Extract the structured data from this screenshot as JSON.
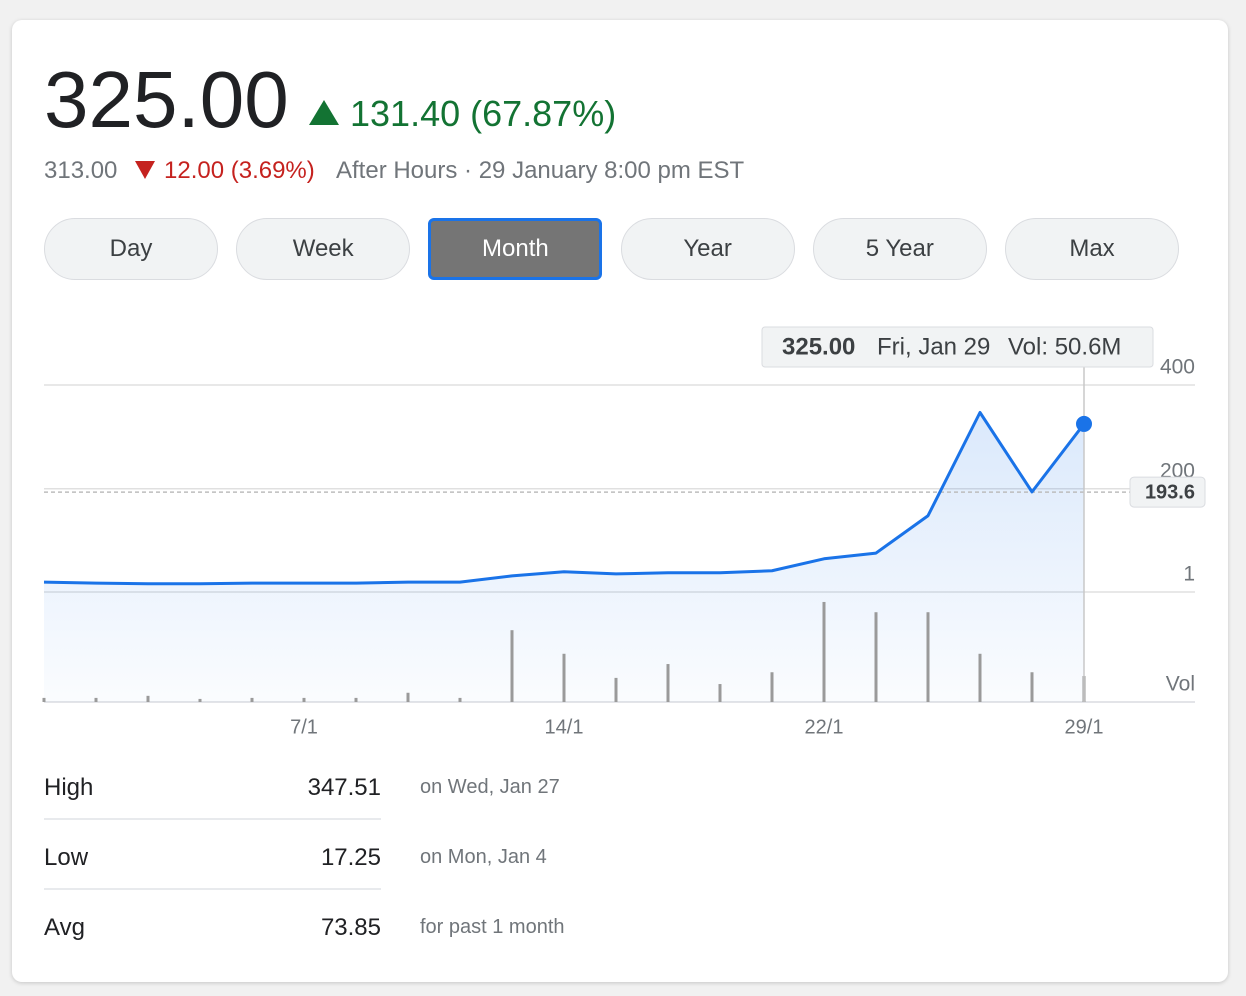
{
  "header": {
    "price": "325.00",
    "change": "131.40 (67.87%)",
    "after_hours_price": "313.00",
    "after_hours_change": "12.00 (3.69%)",
    "after_hours_note": "After Hours · 29 January 8:00 pm EST"
  },
  "range_buttons": {
    "labels": [
      "Day",
      "Week",
      "Month",
      "Year",
      "5 Year",
      "Max"
    ],
    "selected_index": 2
  },
  "chart_data": {
    "type": "line",
    "color": "#1a73e8",
    "categories": [
      null,
      null,
      null,
      null,
      null,
      "7/1",
      null,
      null,
      null,
      null,
      "14/1",
      null,
      null,
      null,
      null,
      "22/1",
      null,
      null,
      null,
      null,
      "29/1"
    ],
    "values": [
      20,
      18,
      17,
      17,
      18,
      18,
      18,
      20,
      20,
      32,
      40,
      36,
      38,
      38,
      42,
      65,
      76,
      148,
      347,
      194,
      325
    ],
    "volume": [
      8,
      8,
      12,
      6,
      8,
      8,
      8,
      18,
      8,
      140,
      94,
      47,
      74,
      35,
      58,
      195,
      175,
      175,
      94,
      58,
      50.6
    ],
    "volume_label": "Vol",
    "ylim": [
      1,
      400
    ],
    "yticks": [
      400,
      200,
      1
    ],
    "grid": true,
    "reference_line": 193.6,
    "tooltip": {
      "value": "325.00",
      "date": "Fri, Jan 29",
      "volume": "Vol: 50.6M"
    }
  },
  "stats": {
    "rows": [
      [
        "High",
        "347.51",
        "on Wed, Jan 27"
      ],
      [
        "Low",
        "17.25",
        "on Mon, Jan 4"
      ],
      [
        "Avg",
        "73.85",
        "for past 1 month"
      ]
    ]
  }
}
